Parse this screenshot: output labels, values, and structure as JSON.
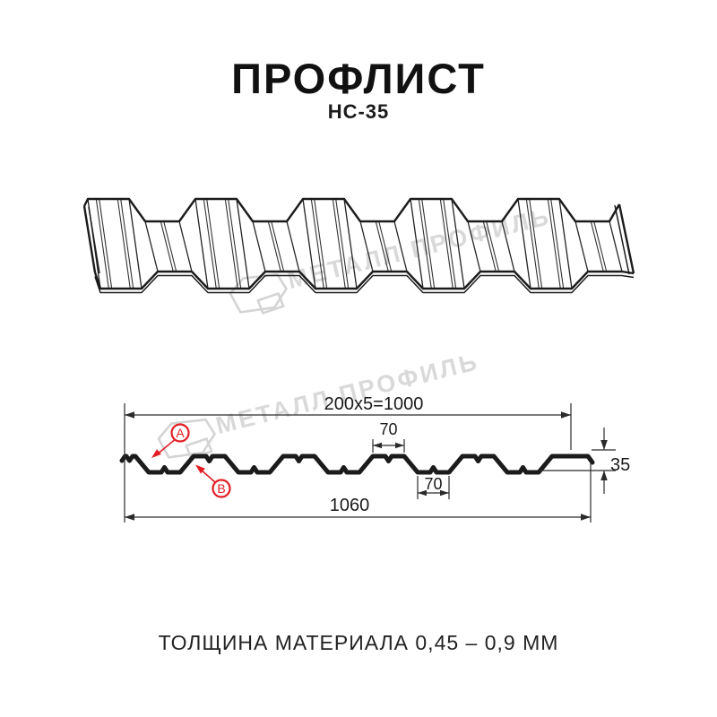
{
  "page": {
    "background": "#ffffff"
  },
  "header": {
    "title": "ПРОФЛИСТ",
    "subtitle": "НС-35"
  },
  "watermark": {
    "text": "МЕТАЛЛ ПРОФИЛЬ",
    "color": "#d7d7d7",
    "logo": "metall-profil-logo"
  },
  "diagram": {
    "dimensions": {
      "pitch": "200x5=1000",
      "rib_top_width": "70",
      "rib_bottom_width": "70",
      "profile_height": "35",
      "overall_width": "1060"
    },
    "callouts": {
      "a": "A",
      "b": "B"
    },
    "colors": {
      "line": "#1b1b1b",
      "dim_line": "#2b2b2b",
      "callout_red": "#e31e24"
    }
  },
  "footer": {
    "text": "ТОЛЩИНА МАТЕРИАЛА 0,45 – 0,9 ММ"
  }
}
